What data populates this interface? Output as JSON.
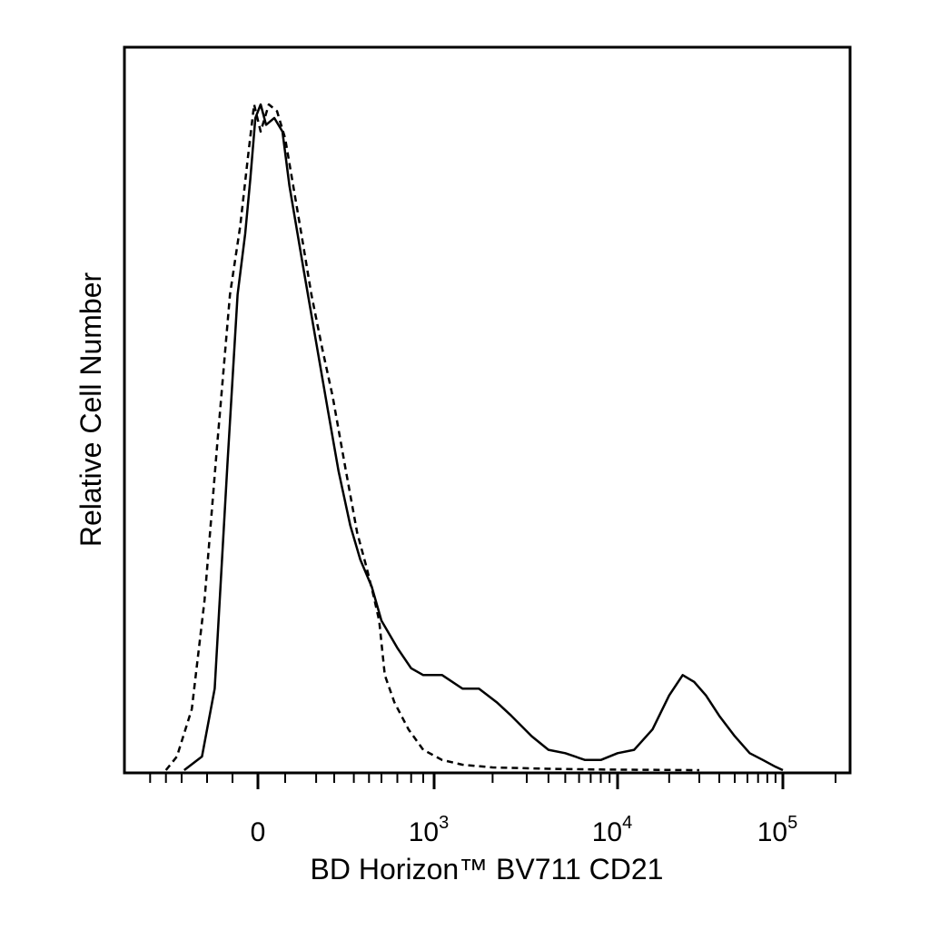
{
  "chart_data": {
    "type": "area",
    "xlabel": "BD Horizon™ BV711 CD21",
    "ylabel": "Relative Cell Number",
    "x_scale": "biexponential",
    "x_ticks": [
      {
        "base": "0",
        "exp": "",
        "value": 0
      },
      {
        "base": "10",
        "exp": "3",
        "value": 1000
      },
      {
        "base": "10",
        "exp": "4",
        "value": 10000
      },
      {
        "base": "10",
        "exp": "5",
        "value": 100000
      }
    ],
    "xlim": [
      -600,
      200000
    ],
    "ylim": [
      0,
      100
    ],
    "grid": false,
    "legend": "none",
    "series": [
      {
        "line_style": "solid",
        "color": "#000000",
        "points": [
          [
            -290,
            0
          ],
          [
            -220,
            2
          ],
          [
            -170,
            12
          ],
          [
            -120,
            45
          ],
          [
            -80,
            70
          ],
          [
            -50,
            79
          ],
          [
            -30,
            87
          ],
          [
            -10,
            96
          ],
          [
            10,
            98
          ],
          [
            30,
            95
          ],
          [
            60,
            96
          ],
          [
            90,
            94
          ],
          [
            110,
            86
          ],
          [
            150,
            74
          ],
          [
            200,
            63
          ],
          [
            260,
            53
          ],
          [
            320,
            44
          ],
          [
            380,
            36
          ],
          [
            440,
            31
          ],
          [
            520,
            27
          ],
          [
            600,
            22
          ],
          [
            700,
            18
          ],
          [
            800,
            15
          ],
          [
            900,
            14
          ],
          [
            1100,
            14
          ],
          [
            1400,
            12
          ],
          [
            1700,
            12
          ],
          [
            2100,
            10
          ],
          [
            2500,
            8
          ],
          [
            3200,
            5
          ],
          [
            4000,
            3
          ],
          [
            5000,
            2.5
          ],
          [
            6500,
            1.5
          ],
          [
            8000,
            1.5
          ],
          [
            10000,
            2.5
          ],
          [
            12500,
            3
          ],
          [
            16000,
            6
          ],
          [
            20000,
            11
          ],
          [
            24000,
            14
          ],
          [
            28000,
            13
          ],
          [
            33000,
            11
          ],
          [
            40000,
            8
          ],
          [
            50000,
            5
          ],
          [
            62000,
            2.5
          ],
          [
            75000,
            1.5
          ],
          [
            90000,
            0.5
          ],
          [
            100000,
            0
          ]
        ]
      },
      {
        "line_style": "dashed",
        "color": "#000000",
        "points": [
          [
            -400,
            0
          ],
          [
            -330,
            2
          ],
          [
            -260,
            9
          ],
          [
            -210,
            25
          ],
          [
            -160,
            48
          ],
          [
            -110,
            70
          ],
          [
            -70,
            80
          ],
          [
            -40,
            90
          ],
          [
            -15,
            98
          ],
          [
            10,
            94
          ],
          [
            40,
            98
          ],
          [
            70,
            97
          ],
          [
            100,
            93
          ],
          [
            140,
            80
          ],
          [
            180,
            70
          ],
          [
            230,
            62
          ],
          [
            290,
            55
          ],
          [
            350,
            45
          ],
          [
            420,
            35
          ],
          [
            480,
            30
          ],
          [
            530,
            26
          ],
          [
            580,
            22
          ],
          [
            620,
            14
          ],
          [
            680,
            10
          ],
          [
            780,
            6
          ],
          [
            900,
            3
          ],
          [
            1100,
            1.5
          ],
          [
            1400,
            0.8
          ],
          [
            2000,
            0.4
          ],
          [
            4000,
            0.2
          ],
          [
            8000,
            0.1
          ],
          [
            30000,
            0
          ]
        ]
      }
    ]
  }
}
